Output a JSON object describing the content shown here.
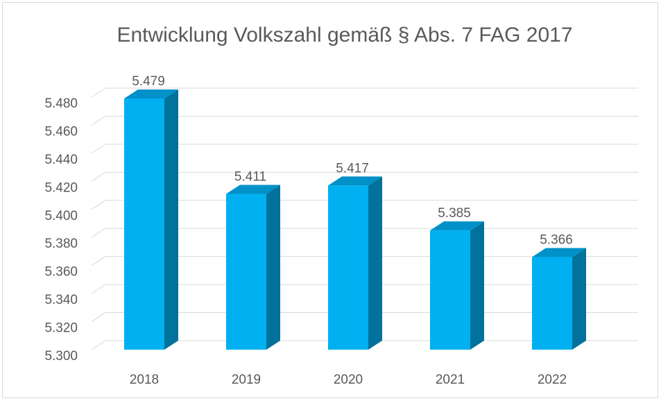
{
  "chart_data": {
    "type": "bar3d",
    "title": "Entwicklung Volkszahl gemäß § Abs. 7 FAG 2017",
    "categories": [
      "2018",
      "2019",
      "2020",
      "2021",
      "2022"
    ],
    "values": [
      5479,
      5411,
      5417,
      5385,
      5366
    ],
    "value_labels": [
      "5.479",
      "5.411",
      "5.417",
      "5.385",
      "5.366"
    ],
    "color": "#00b0f0",
    "ylim": [
      5300,
      5480
    ],
    "yticks": [
      {
        "value": 5300,
        "label": "5.300"
      },
      {
        "value": 5320,
        "label": "5.320"
      },
      {
        "value": 5340,
        "label": "5.340"
      },
      {
        "value": 5360,
        "label": "5.360"
      },
      {
        "value": 5380,
        "label": "5.380"
      },
      {
        "value": 5400,
        "label": "5.400"
      },
      {
        "value": 5420,
        "label": "5.420"
      },
      {
        "value": 5440,
        "label": "5.440"
      },
      {
        "value": 5460,
        "label": "5.460"
      },
      {
        "value": 5480,
        "label": "5.480"
      }
    ],
    "grid": true
  }
}
